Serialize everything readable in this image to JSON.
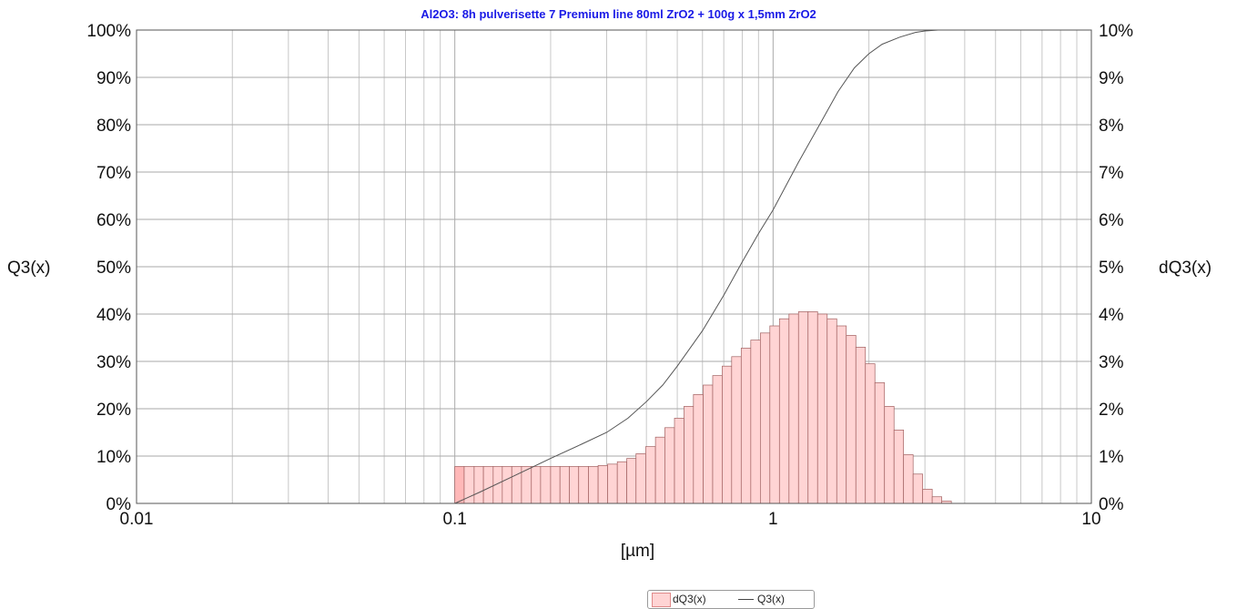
{
  "chart_data": {
    "type": "bar",
    "title": "Al2O3: 8h pulverisette 7 Premium line 80ml ZrO2 + 100g x 1,5mm ZrO2",
    "xlabel": "[µm]",
    "ylabel_left": "Q3(x)",
    "ylabel_right": "dQ3(x)",
    "x_scale": "log",
    "xlim": [
      0.01,
      10
    ],
    "x_ticks": [
      "0.01",
      "0.1",
      "1",
      "10"
    ],
    "ylim_left": [
      0,
      100
    ],
    "ylim_right": [
      0,
      10
    ],
    "y_ticks_left": [
      "0%",
      "10%",
      "20%",
      "30%",
      "40%",
      "50%",
      "60%",
      "70%",
      "80%",
      "90%",
      "100%"
    ],
    "y_ticks_right": [
      "0%",
      "1%",
      "2%",
      "3%",
      "4%",
      "5%",
      "6%",
      "7%",
      "8%",
      "9%",
      "10%"
    ],
    "grid": true,
    "legend_position": "bottom-center",
    "colors": {
      "bar_fill": "#ffd4d4",
      "bar_stroke": "#a06060",
      "first_bar_fill": "#ffb8b8",
      "line": "#555555",
      "title": "#1a1ae6",
      "grid": "#c8c8c8"
    },
    "series": [
      {
        "name": "dQ3(x)",
        "type": "bar",
        "axis": "right",
        "bin_edges": [
          0.1,
          0.107,
          0.115,
          0.123,
          0.132,
          0.141,
          0.151,
          0.162,
          0.174,
          0.186,
          0.2,
          0.214,
          0.229,
          0.245,
          0.263,
          0.282,
          0.302,
          0.324,
          0.347,
          0.371,
          0.398,
          0.427,
          0.457,
          0.49,
          0.525,
          0.562,
          0.603,
          0.646,
          0.692,
          0.741,
          0.794,
          0.851,
          0.912,
          0.977,
          1.047,
          1.122,
          1.202,
          1.288,
          1.38,
          1.479,
          1.585,
          1.698,
          1.82,
          1.95,
          2.089,
          2.239,
          2.399,
          2.57,
          2.754,
          2.951,
          3.162,
          3.388,
          3.631
        ],
        "values": [
          0.78,
          0.78,
          0.78,
          0.78,
          0.78,
          0.78,
          0.78,
          0.78,
          0.78,
          0.78,
          0.78,
          0.78,
          0.78,
          0.78,
          0.78,
          0.8,
          0.83,
          0.88,
          0.95,
          1.05,
          1.2,
          1.4,
          1.6,
          1.8,
          2.05,
          2.3,
          2.5,
          2.7,
          2.9,
          3.1,
          3.28,
          3.45,
          3.6,
          3.75,
          3.9,
          4.0,
          4.05,
          4.05,
          4.0,
          3.9,
          3.75,
          3.55,
          3.3,
          2.95,
          2.55,
          2.05,
          1.55,
          1.03,
          0.62,
          0.3,
          0.14,
          0.05
        ]
      },
      {
        "name": "Q3(x)",
        "type": "line",
        "axis": "left",
        "x": [
          0.1,
          0.12,
          0.15,
          0.2,
          0.25,
          0.3,
          0.35,
          0.4,
          0.45,
          0.5,
          0.6,
          0.7,
          0.8,
          0.9,
          1.0,
          1.2,
          1.4,
          1.6,
          1.8,
          2.0,
          2.2,
          2.5,
          2.8,
          3.0,
          3.3,
          3.6
        ],
        "y": [
          0,
          2.4,
          5.5,
          9.5,
          12.5,
          15.0,
          18.0,
          21.5,
          25.0,
          29.0,
          36.5,
          44.0,
          51.0,
          57.0,
          62.0,
          72.0,
          80.0,
          87.0,
          92.0,
          95.0,
          97.0,
          98.5,
          99.5,
          99.8,
          100,
          100
        ]
      }
    ]
  }
}
